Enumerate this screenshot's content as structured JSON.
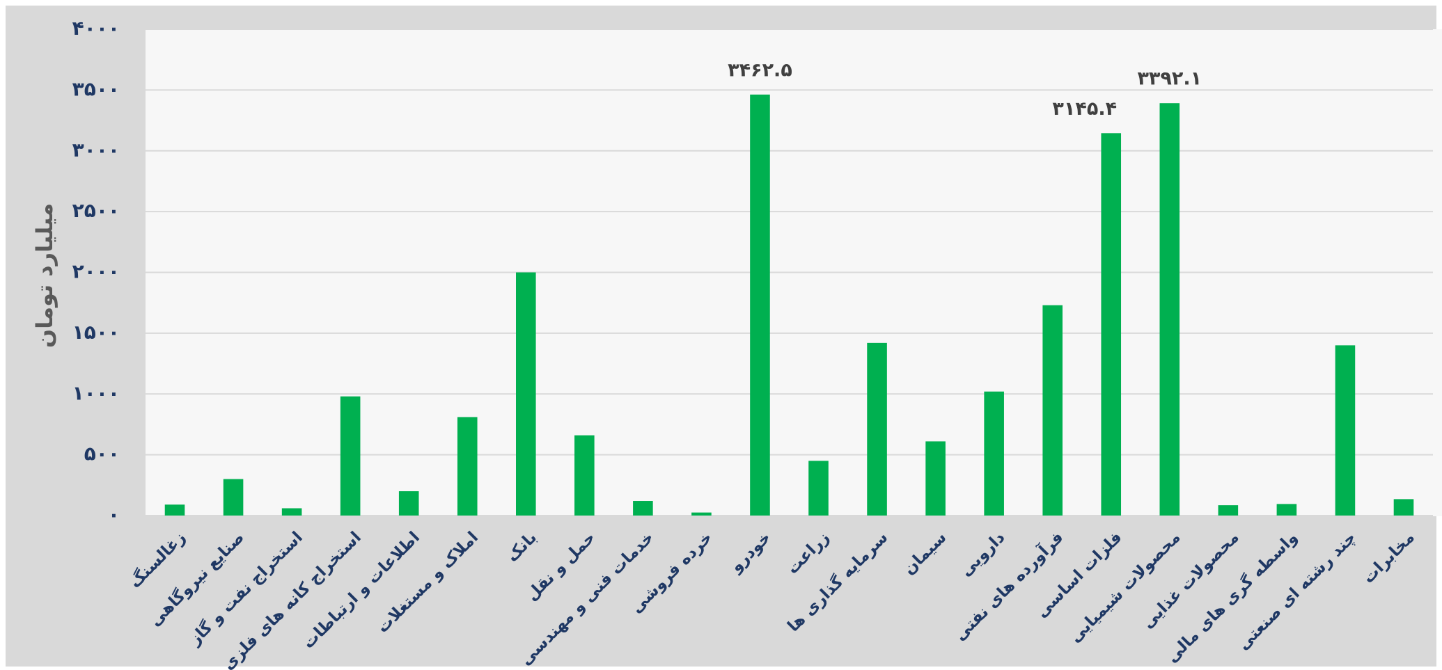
{
  "chart_data": {
    "type": "bar",
    "y_label": "میلیارد تومان",
    "categories": [
      "زغالسنگ",
      "صنایع نیروگاهی",
      "استخراج نفت و گاز",
      "استخراج کانه های فلزی",
      "اطلاعات و ارتباطات",
      "املاک و مستغلات",
      "بانک",
      "حمل و نقل",
      "خدمات فنی و مهندسی",
      "خرده فروشی",
      "خودرو",
      "زراعت",
      "سرمایه گذاری ها",
      "سیمان",
      "دارویی",
      "فرآورده های نفتی",
      "فلزات اساسی",
      "محصولات شیمیایی",
      "محصولات غذایی",
      "واسطه گری های مالی",
      "چند رشته ای صنعتی",
      "مخابرات"
    ],
    "values": [
      90,
      300,
      60,
      980,
      200,
      810,
      2000,
      660,
      120,
      25,
      3462.5,
      450,
      1420,
      610,
      1020,
      1730,
      3145.4,
      3392.1,
      85,
      95,
      1400,
      135
    ],
    "value_labels": [
      null,
      null,
      null,
      null,
      null,
      null,
      null,
      null,
      null,
      null,
      "۳۴۶۲.۵",
      null,
      null,
      null,
      null,
      null,
      "۳۱۴۵.۴",
      "۳۳۹۲.۱",
      null,
      null,
      null,
      null
    ],
    "color": "#00b050",
    "ylim": [
      0,
      4000
    ],
    "yticks": [
      {
        "value": 0,
        "label": "۰"
      },
      {
        "value": 500,
        "label": "۵۰۰"
      },
      {
        "value": 1000,
        "label": "۱۰۰۰"
      },
      {
        "value": 1500,
        "label": "۱۵۰۰"
      },
      {
        "value": 2000,
        "label": "۲۰۰۰"
      },
      {
        "value": 2500,
        "label": "۲۵۰۰"
      },
      {
        "value": 3000,
        "label": "۳۰۰۰"
      },
      {
        "value": 3500,
        "label": "۳۵۰۰"
      },
      {
        "value": 4000,
        "label": "۴۰۰۰"
      }
    ],
    "grid": true
  }
}
